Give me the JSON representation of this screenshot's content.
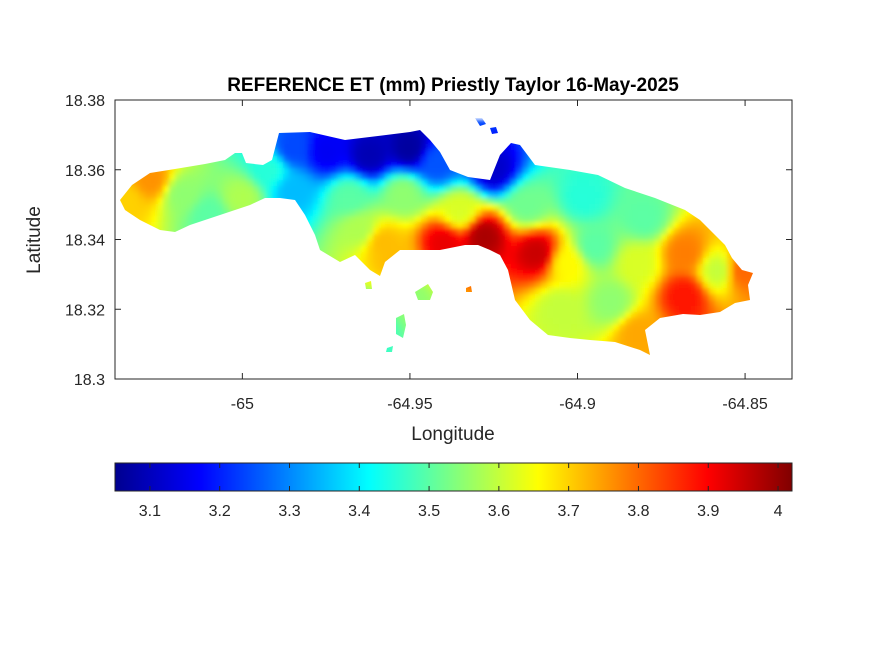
{
  "chart_data": {
    "type": "heatmap",
    "title": "REFERENCE ET (mm) Priestly Taylor 16-May-2025",
    "xlabel": "Longitude",
    "ylabel": "Latitude",
    "xlim": [
      -65.038,
      -64.836
    ],
    "ylim": [
      18.3,
      18.38
    ],
    "xticks": [
      -65,
      -64.95,
      -64.9,
      -64.85
    ],
    "xtick_labels": [
      "-65",
      "-64.95",
      "-64.9",
      "-64.85"
    ],
    "yticks": [
      18.3,
      18.32,
      18.34,
      18.36,
      18.38
    ],
    "ytick_labels": [
      "18.3",
      "18.32",
      "18.34",
      "18.36",
      "18.38"
    ],
    "colormap": "jet",
    "color_range": [
      3.05,
      4.02
    ],
    "colorbar_ticks": [
      3.1,
      3.2,
      3.3,
      3.4,
      3.5,
      3.6,
      3.7,
      3.8,
      3.9,
      4
    ],
    "colorbar_tick_labels": [
      "3.1",
      "3.2",
      "3.3",
      "3.4",
      "3.5",
      "3.6",
      "3.7",
      "3.8",
      "3.9",
      "4"
    ],
    "colorbar_location": "southoutside",
    "grid": false,
    "value_points": [
      {
        "lon": -65.035,
        "lat": 18.351,
        "v": 3.7
      },
      {
        "lon": -65.027,
        "lat": 18.357,
        "v": 3.76
      },
      {
        "lon": -65.018,
        "lat": 18.353,
        "v": 3.55
      },
      {
        "lon": -65.01,
        "lat": 18.347,
        "v": 3.5
      },
      {
        "lon": -65.0,
        "lat": 18.352,
        "v": 3.58
      },
      {
        "lon": -64.992,
        "lat": 18.36,
        "v": 3.45
      },
      {
        "lon": -64.985,
        "lat": 18.366,
        "v": 3.24
      },
      {
        "lon": -64.975,
        "lat": 18.365,
        "v": 3.16
      },
      {
        "lon": -64.962,
        "lat": 18.364,
        "v": 3.1
      },
      {
        "lon": -64.95,
        "lat": 18.366,
        "v": 3.08
      },
      {
        "lon": -64.942,
        "lat": 18.362,
        "v": 3.25
      },
      {
        "lon": -64.925,
        "lat": 18.36,
        "v": 3.12
      },
      {
        "lon": -64.985,
        "lat": 18.354,
        "v": 3.35
      },
      {
        "lon": -64.968,
        "lat": 18.352,
        "v": 3.5
      },
      {
        "lon": -64.952,
        "lat": 18.353,
        "v": 3.55
      },
      {
        "lon": -64.935,
        "lat": 18.348,
        "v": 3.62
      },
      {
        "lon": -64.915,
        "lat": 18.35,
        "v": 3.52
      },
      {
        "lon": -64.898,
        "lat": 18.352,
        "v": 3.45
      },
      {
        "lon": -64.88,
        "lat": 18.346,
        "v": 3.5
      },
      {
        "lon": -64.965,
        "lat": 18.343,
        "v": 3.58
      },
      {
        "lon": -64.958,
        "lat": 18.339,
        "v": 3.72
      },
      {
        "lon": -64.94,
        "lat": 18.339,
        "v": 3.92
      },
      {
        "lon": -64.928,
        "lat": 18.341,
        "v": 3.98
      },
      {
        "lon": -64.912,
        "lat": 18.336,
        "v": 3.95
      },
      {
        "lon": -64.895,
        "lat": 18.338,
        "v": 3.5
      },
      {
        "lon": -64.903,
        "lat": 18.333,
        "v": 3.66
      },
      {
        "lon": -64.882,
        "lat": 18.333,
        "v": 3.62
      },
      {
        "lon": -64.868,
        "lat": 18.336,
        "v": 3.78
      },
      {
        "lon": -64.858,
        "lat": 18.331,
        "v": 3.6
      },
      {
        "lon": -64.851,
        "lat": 18.331,
        "v": 3.8
      },
      {
        "lon": -64.868,
        "lat": 18.324,
        "v": 3.88
      },
      {
        "lon": -64.89,
        "lat": 18.322,
        "v": 3.55
      },
      {
        "lon": -64.905,
        "lat": 18.32,
        "v": 3.6
      },
      {
        "lon": -64.882,
        "lat": 18.313,
        "v": 3.74
      },
      {
        "lon": -64.955,
        "lat": 18.334,
        "v": 3.72
      },
      {
        "lon": -64.95,
        "lat": 18.323,
        "v": 3.55
      },
      {
        "lon": -64.962,
        "lat": 18.316,
        "v": 3.45
      }
    ]
  }
}
